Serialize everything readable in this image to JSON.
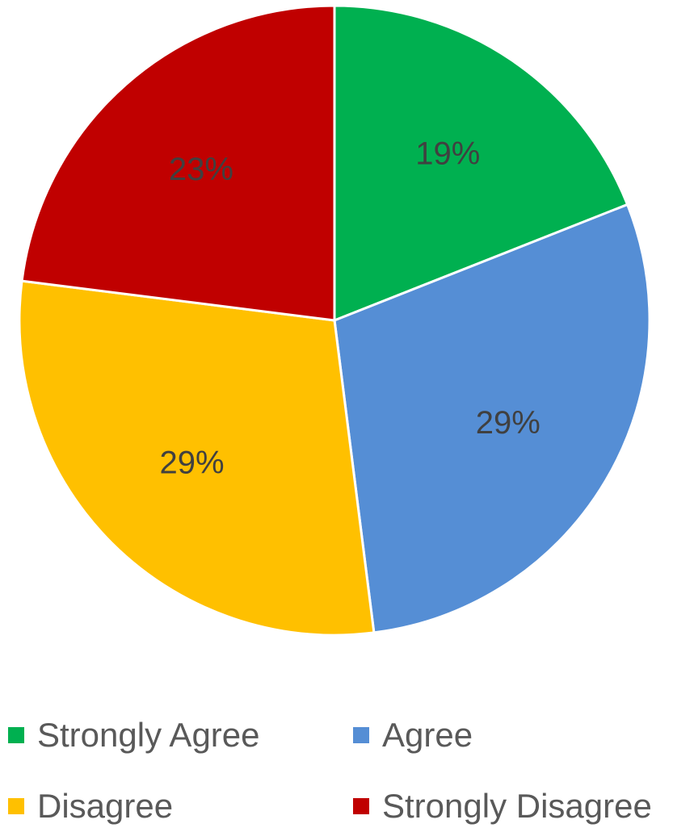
{
  "chart_data": {
    "type": "pie",
    "categories": [
      "Strongly Agree",
      "Agree",
      "Disagree",
      "Strongly Disagree"
    ],
    "values": [
      19,
      29,
      29,
      23
    ],
    "data_labels": [
      "19%",
      "29%",
      "29%",
      "23%"
    ],
    "colors": [
      "#00b050",
      "#558ed5",
      "#ffc000",
      "#c00000"
    ],
    "start_angle_deg": 0,
    "direction": "clockwise",
    "legend_position": "bottom"
  },
  "legend": {
    "items": [
      {
        "label": "Strongly Agree",
        "color": "#00b050"
      },
      {
        "label": "Agree",
        "color": "#558ed5"
      },
      {
        "label": "Disagree",
        "color": "#ffc000"
      },
      {
        "label": "Strongly Disagree",
        "color": "#c00000"
      }
    ]
  }
}
